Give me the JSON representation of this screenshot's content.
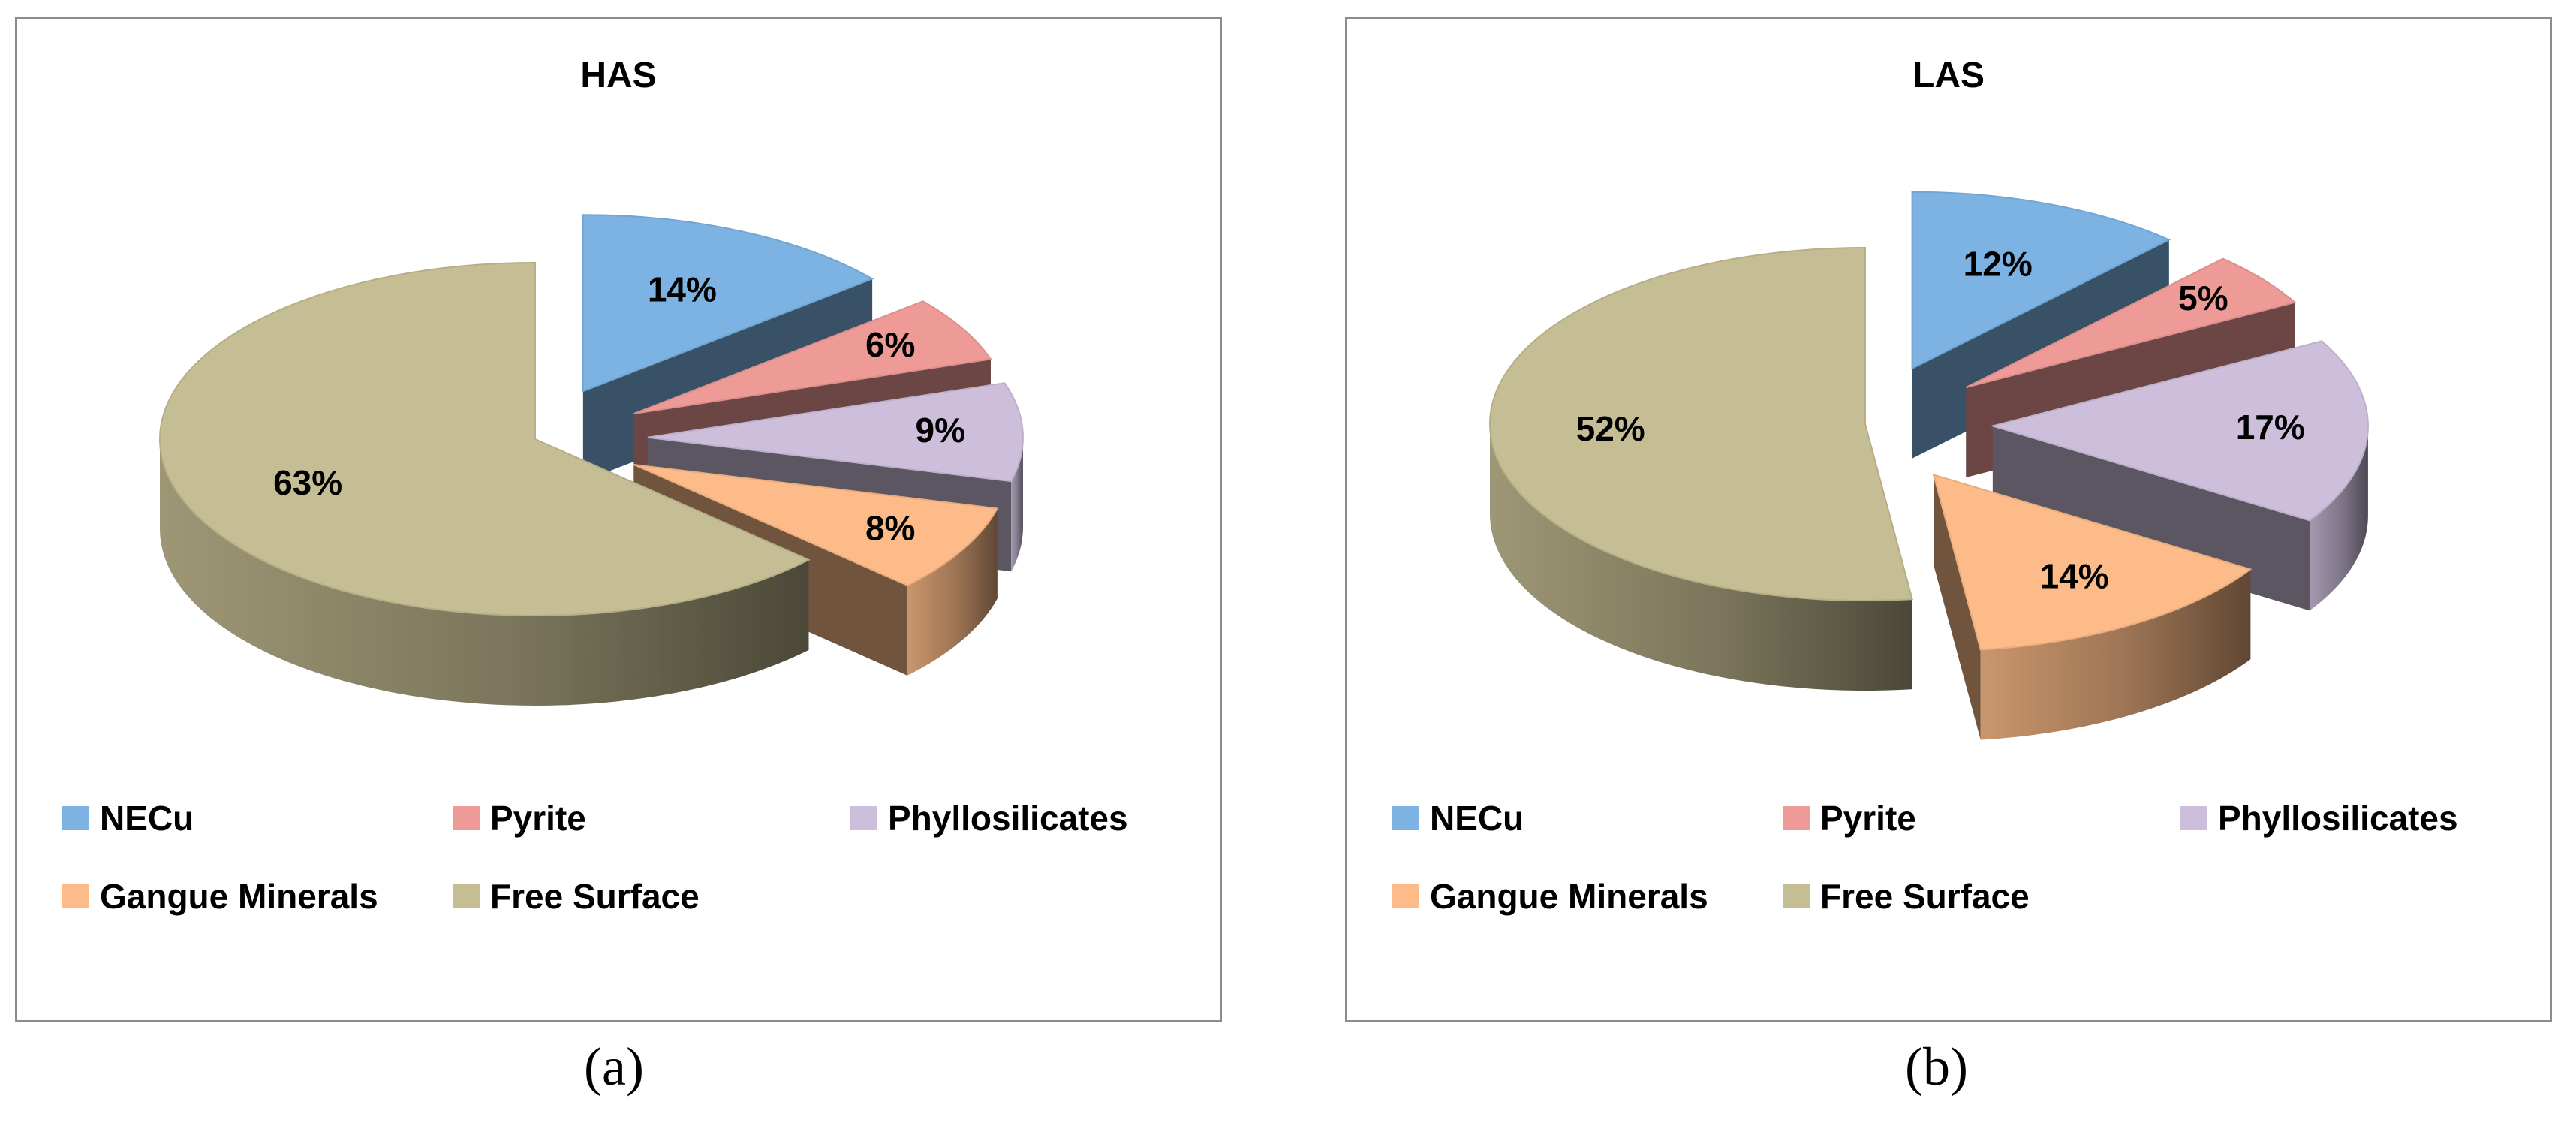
{
  "chart_data": [
    {
      "type": "pie",
      "title": "HAS",
      "caption": "(a)",
      "categories": [
        "NECu",
        "Pyrite",
        "Phyllosilicates",
        "Gangue Minerals",
        "Free Surface"
      ],
      "values": [
        14,
        6,
        9,
        8,
        63
      ],
      "labels": [
        "14%",
        "6%",
        "9%",
        "8%",
        "63%"
      ],
      "colors": [
        "#7cb3e3",
        "#ee9b97",
        "#cdbfdc",
        "#fcbb88",
        "#c5bd93"
      ],
      "legend_position": "bottom"
    },
    {
      "type": "pie",
      "title": "LAS",
      "caption": "(b)",
      "categories": [
        "NECu",
        "Pyrite",
        "Phyllosilicates",
        "Gangue Minerals",
        "Free Surface"
      ],
      "values": [
        12,
        5,
        17,
        14,
        52
      ],
      "labels": [
        "12%",
        "5%",
        "17%",
        "14%",
        "52%"
      ],
      "colors": [
        "#7cb3e3",
        "#ee9b97",
        "#cdbfdc",
        "#fcbb88",
        "#c5bd93"
      ],
      "legend_position": "bottom"
    }
  ]
}
